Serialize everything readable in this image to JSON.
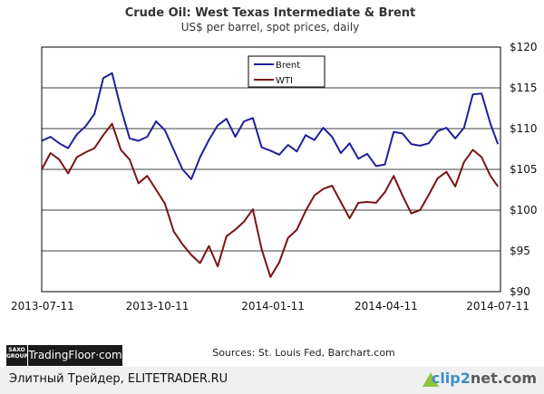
{
  "chart_data": {
    "type": "line",
    "title": "Crude Oil: West Texas Intermediate & Brent",
    "subtitle": "US$ per barrel, spot prices, daily",
    "x_tick_labels": [
      "2013-07-11",
      "2013-10-11",
      "2014-01-11",
      "2014-04-11",
      "2014-07-11"
    ],
    "x_range": [
      "2013-07-11",
      "2014-07-11"
    ],
    "y_ticks": [
      90,
      95,
      100,
      105,
      110,
      115,
      120
    ],
    "y_tick_labels": [
      "$90",
      "$95",
      "$100",
      "$105",
      "$110",
      "$115",
      "$120"
    ],
    "ylim": [
      90,
      120
    ],
    "y_axis_side": "right",
    "grid": true,
    "legend_position": "top-center",
    "series": [
      {
        "name": "Brent",
        "color": "#1f1f9e",
        "x": [
          "2013-07-11",
          "2013-07-18",
          "2013-07-25",
          "2013-08-01",
          "2013-08-08",
          "2013-08-15",
          "2013-08-22",
          "2013-08-29",
          "2013-09-05",
          "2013-09-12",
          "2013-09-19",
          "2013-09-26",
          "2013-10-03",
          "2013-10-10",
          "2013-10-17",
          "2013-10-24",
          "2013-10-31",
          "2013-11-07",
          "2013-11-14",
          "2013-11-21",
          "2013-11-28",
          "2013-12-05",
          "2013-12-12",
          "2013-12-19",
          "2013-12-26",
          "2014-01-02",
          "2014-01-09",
          "2014-01-16",
          "2014-01-23",
          "2014-01-30",
          "2014-02-06",
          "2014-02-13",
          "2014-02-20",
          "2014-02-27",
          "2014-03-06",
          "2014-03-13",
          "2014-03-20",
          "2014-03-27",
          "2014-04-03",
          "2014-04-10",
          "2014-04-17",
          "2014-04-24",
          "2014-05-01",
          "2014-05-08",
          "2014-05-15",
          "2014-05-22",
          "2014-05-29",
          "2014-06-05",
          "2014-06-12",
          "2014-06-19",
          "2014-06-26",
          "2014-07-03",
          "2014-07-09"
        ],
        "values": [
          108.5,
          109.0,
          108.2,
          107.6,
          109.3,
          110.3,
          111.8,
          116.2,
          116.8,
          112.5,
          108.8,
          108.5,
          109.0,
          110.9,
          109.8,
          107.4,
          105.0,
          103.8,
          106.5,
          108.6,
          110.4,
          111.2,
          109.0,
          110.9,
          111.3,
          107.7,
          107.3,
          106.8,
          108.0,
          107.2,
          109.2,
          108.6,
          110.1,
          109.0,
          107.0,
          108.2,
          106.3,
          106.9,
          105.4,
          105.6,
          109.6,
          109.4,
          108.1,
          107.9,
          108.2,
          109.7,
          110.1,
          108.8,
          110.1,
          114.2,
          114.3,
          110.6,
          108.1
        ]
      },
      {
        "name": "WTI",
        "color": "#7a1414",
        "x": [
          "2013-07-11",
          "2013-07-18",
          "2013-07-25",
          "2013-08-01",
          "2013-08-08",
          "2013-08-15",
          "2013-08-22",
          "2013-08-29",
          "2013-09-05",
          "2013-09-12",
          "2013-09-19",
          "2013-09-26",
          "2013-10-03",
          "2013-10-10",
          "2013-10-17",
          "2013-10-24",
          "2013-10-31",
          "2013-11-07",
          "2013-11-14",
          "2013-11-21",
          "2013-11-28",
          "2013-12-05",
          "2013-12-12",
          "2013-12-19",
          "2013-12-26",
          "2014-01-02",
          "2014-01-09",
          "2014-01-16",
          "2014-01-23",
          "2014-01-30",
          "2014-02-06",
          "2014-02-13",
          "2014-02-20",
          "2014-02-27",
          "2014-03-06",
          "2014-03-13",
          "2014-03-20",
          "2014-03-27",
          "2014-04-03",
          "2014-04-10",
          "2014-04-17",
          "2014-04-24",
          "2014-05-01",
          "2014-05-08",
          "2014-05-15",
          "2014-05-22",
          "2014-05-29",
          "2014-06-05",
          "2014-06-12",
          "2014-06-19",
          "2014-06-26",
          "2014-07-03",
          "2014-07-09"
        ],
        "values": [
          105.0,
          107.0,
          106.2,
          104.5,
          106.5,
          107.1,
          107.6,
          109.2,
          110.6,
          107.4,
          106.2,
          103.3,
          104.2,
          102.5,
          100.8,
          97.4,
          95.8,
          94.5,
          93.5,
          95.6,
          93.1,
          96.8,
          97.6,
          98.6,
          100.1,
          95.2,
          91.8,
          93.6,
          96.6,
          97.6,
          99.9,
          101.8,
          102.6,
          103.0,
          101.0,
          99.0,
          100.9,
          101.0,
          100.9,
          102.2,
          104.2,
          101.8,
          99.6,
          100.0,
          101.9,
          103.9,
          104.7,
          102.9,
          105.9,
          107.4,
          106.5,
          104.2,
          102.9
        ]
      }
    ]
  },
  "source_text": "Sources: St. Louis Fed, Barchart.com",
  "branding": {
    "saxo_top": "SAXO",
    "saxo_bottom": "GROUP",
    "tradingfloor": "TradingFloor·com"
  },
  "footer": {
    "watermark_text": "Элитный Трейдер, ELITETRADER.RU",
    "clip_part1": "clip",
    "clip_part2": "2",
    "clip_part3": "net.com"
  },
  "colors": {
    "grid": "#000000",
    "background": "#ffffff"
  }
}
